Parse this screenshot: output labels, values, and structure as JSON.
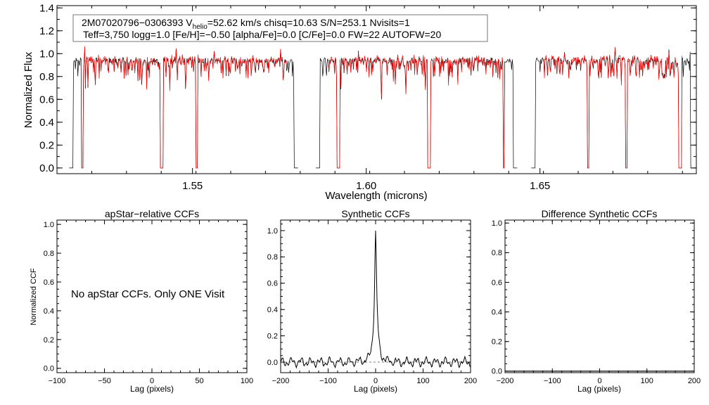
{
  "colors": {
    "observed": "#000000",
    "model": "#ff0000",
    "axes": "#000000",
    "zero_line": "#555555"
  },
  "chart_data": [
    {
      "type": "line",
      "id": "spectrum",
      "info_line1_prefix": "2M07020796−0306393  V",
      "info_line1_sub": "helio",
      "info_line1_rest": "=52.62 km/s  chisq=10.63  S/N=253.1  Nvisits=1",
      "info_line2": "Teff=3,750 logg=1.0 [Fe/H]=−0.50 [alpha/Fe]=0.0 [C/Fe]=0.0 FW=22 AUTOFW=20",
      "xlabel": "Wavelength (microns)",
      "ylabel": "Normalized Flux",
      "xlim": [
        1.511,
        1.695
      ],
      "ylim": [
        -0.05,
        1.42
      ],
      "xticks": [
        1.55,
        1.6,
        1.65
      ],
      "xtick_labels": [
        "1.55",
        "1.60",
        "1.65"
      ],
      "yticks": [
        0.0,
        0.2,
        0.4,
        0.6,
        0.8,
        1.0,
        1.2,
        1.4
      ],
      "ytick_labels": [
        "0.0",
        "0.2",
        "0.4",
        "0.6",
        "0.8",
        "1.0",
        "1.2",
        "1.4"
      ],
      "chips": [
        [
          1.5145,
          1.5805
        ],
        [
          1.5855,
          1.6435
        ],
        [
          1.6475,
          1.6945
        ]
      ],
      "masked_lines": [
        1.5145,
        1.5183,
        1.5409,
        1.5413,
        1.5512,
        1.5805,
        1.5855,
        1.5918,
        1.5922,
        1.6178,
        1.6182,
        1.6396,
        1.6435,
        1.6475,
        1.6479,
        1.6639,
        1.6748,
        1.6902,
        1.6906
      ]
    },
    {
      "type": "line",
      "id": "apstar-ccf",
      "title": "apStar−relative CCFs",
      "xlabel": "Lag (pixels)",
      "ylabel": "Normalized CCF",
      "xlim": [
        -100,
        100
      ],
      "ylim": [
        -0.03,
        1.03
      ],
      "xticks": [
        -100,
        -50,
        0,
        50,
        100
      ],
      "xtick_labels": [
        "−100",
        "−50",
        "0",
        "50",
        "100"
      ],
      "yticks": [
        0.0,
        0.2,
        0.4,
        0.6,
        0.8,
        1.0
      ],
      "ytick_labels": [
        "0.0",
        "0.2",
        "0.4",
        "0.6",
        "0.8",
        "1.0"
      ],
      "annotation": "No apStar CCFs.  Only ONE Visit"
    },
    {
      "type": "line",
      "id": "synthetic-ccf",
      "title": "Synthetic CCFs",
      "xlabel": "Lag (pixels)",
      "xlim": [
        -200,
        200
      ],
      "ylim": [
        -0.08,
        1.08
      ],
      "xticks": [
        -200,
        -100,
        0,
        100,
        200
      ],
      "xtick_labels": [
        "−200",
        "−100",
        "0",
        "100",
        "200"
      ],
      "yticks": [
        0.0,
        0.2,
        0.4,
        0.6,
        0.8,
        1.0
      ],
      "ytick_labels": [
        "0.0",
        "0.2",
        "0.4",
        "0.6",
        "0.8",
        "1.0"
      ],
      "peak": {
        "lag": 0,
        "value": 1.0
      },
      "baseline": 0.0
    },
    {
      "type": "line",
      "id": "difference-ccf",
      "title": "Difference Synthetic CCFs",
      "xlabel": "Lag (pixels)",
      "xlim": [
        -200,
        200
      ],
      "ylim": [
        -0.01,
        1.02
      ],
      "xticks": [
        -200,
        -100,
        0,
        100,
        200
      ],
      "xtick_labels": [
        "−200",
        "−100",
        "0",
        "100",
        "200"
      ],
      "yticks": [
        0.0,
        0.2,
        0.4,
        0.6,
        0.8,
        1.0
      ],
      "ytick_labels": [
        "0.0",
        "0.2",
        "0.4",
        "0.6",
        "0.8",
        "1.0"
      ],
      "baseline": 0.0
    }
  ]
}
